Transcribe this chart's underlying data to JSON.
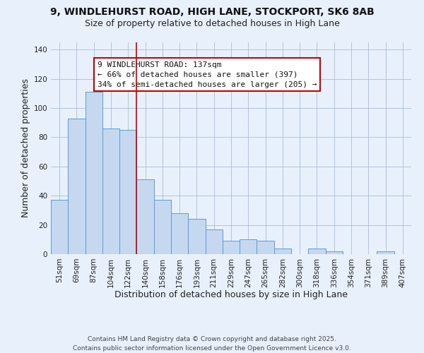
{
  "title1": "9, WINDLEHURST ROAD, HIGH LANE, STOCKPORT, SK6 8AB",
  "title2": "Size of property relative to detached houses in High Lane",
  "xlabel": "Distribution of detached houses by size in High Lane",
  "ylabel": "Number of detached properties",
  "categories": [
    "51sqm",
    "69sqm",
    "87sqm",
    "104sqm",
    "122sqm",
    "140sqm",
    "158sqm",
    "176sqm",
    "193sqm",
    "211sqm",
    "229sqm",
    "247sqm",
    "265sqm",
    "282sqm",
    "300sqm",
    "318sqm",
    "336sqm",
    "354sqm",
    "371sqm",
    "389sqm",
    "407sqm"
  ],
  "values": [
    37,
    93,
    111,
    86,
    85,
    51,
    37,
    28,
    24,
    17,
    9,
    10,
    9,
    4,
    0,
    4,
    2,
    0,
    0,
    2,
    0
  ],
  "bar_color": "#c5d8f0",
  "bar_edge_color": "#5b9bd5",
  "vline_position": 4.5,
  "vline_color": "#cc0000",
  "ylim": [
    0,
    145
  ],
  "yticks": [
    0,
    20,
    40,
    60,
    80,
    100,
    120,
    140
  ],
  "annotation_line1": "9 WINDLEHURST ROAD: 137sqm",
  "annotation_line2": "← 66% of detached houses are smaller (397)",
  "annotation_line3": "34% of semi-detached houses are larger (205) →",
  "annotation_box_color": "#ffffff",
  "annotation_box_edge": "#cc0000",
  "footer1": "Contains HM Land Registry data © Crown copyright and database right 2025.",
  "footer2": "Contains public sector information licensed under the Open Government Licence v3.0.",
  "bg_color": "#e8f0fb",
  "plot_bg_color": "#e8f0fb",
  "title_fontsize": 10,
  "subtitle_fontsize": 9,
  "axis_label_fontsize": 9,
  "tick_fontsize": 7.5,
  "footer_fontsize": 6.5,
  "annotation_fontsize": 8
}
